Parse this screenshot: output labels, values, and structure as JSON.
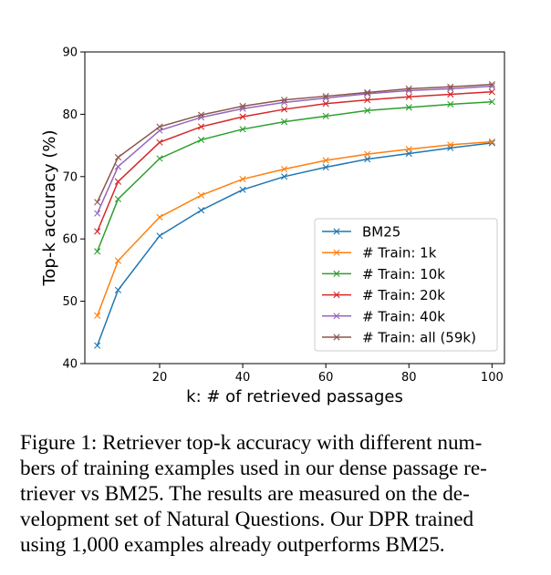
{
  "chart_data": {
    "type": "line",
    "title": "",
    "xlabel": "k: # of retrieved passages",
    "ylabel": "Top-k accuracy (%)",
    "xlim": [
      2,
      103
    ],
    "ylim": [
      40,
      90
    ],
    "xticks": [
      20,
      40,
      60,
      80,
      100
    ],
    "yticks": [
      40,
      50,
      60,
      70,
      80,
      90
    ],
    "grid": false,
    "legend_position": "lower-right",
    "x": [
      5,
      10,
      20,
      30,
      40,
      50,
      60,
      70,
      80,
      90,
      100
    ],
    "series": [
      {
        "name": "BM25",
        "color": "#1f77b4",
        "values": [
          42.9,
          51.8,
          60.5,
          64.6,
          67.9,
          70.0,
          71.5,
          72.8,
          73.7,
          74.6,
          75.4
        ]
      },
      {
        "name": "# Train: 1k",
        "color": "#ff7f0e",
        "values": [
          47.7,
          56.5,
          63.5,
          67.0,
          69.6,
          71.2,
          72.6,
          73.6,
          74.4,
          75.1,
          75.6
        ]
      },
      {
        "name": "# Train: 10k",
        "color": "#2ca02c",
        "values": [
          58.0,
          66.4,
          72.9,
          75.9,
          77.6,
          78.8,
          79.7,
          80.6,
          81.1,
          81.6,
          82.0
        ]
      },
      {
        "name": "# Train: 20k",
        "color": "#d62728",
        "values": [
          61.2,
          69.2,
          75.5,
          78.0,
          79.6,
          80.8,
          81.7,
          82.3,
          82.8,
          83.2,
          83.6
        ]
      },
      {
        "name": "# Train: 40k",
        "color": "#9467bd",
        "values": [
          64.1,
          71.6,
          77.4,
          79.5,
          80.9,
          81.9,
          82.6,
          83.3,
          83.8,
          84.1,
          84.5
        ]
      },
      {
        "name": "# Train: all (59k)",
        "color": "#8c564b",
        "values": [
          65.9,
          73.1,
          78.0,
          79.9,
          81.3,
          82.3,
          82.9,
          83.5,
          84.1,
          84.4,
          84.8
        ]
      }
    ]
  },
  "caption": {
    "lines": [
      "Figure 1: Retriever top-k accuracy with different num-",
      "bers of training examples used in our dense passage re-",
      "triever vs BM25.  The results are measured on the de-",
      "velopment set of Natural Questions.  Our DPR trained",
      "using 1,000 examples already outperforms BM25."
    ]
  }
}
